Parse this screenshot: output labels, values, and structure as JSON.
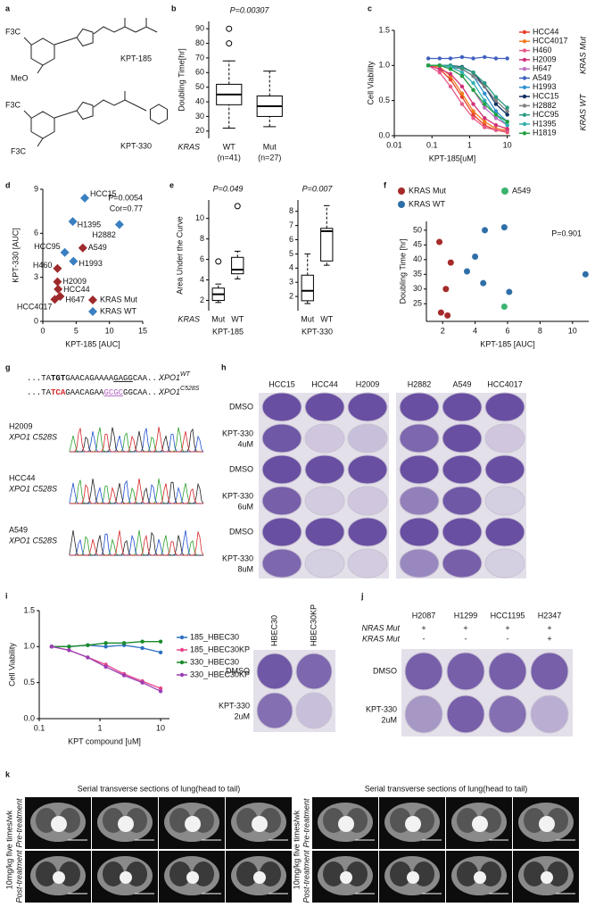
{
  "panel_labels": [
    "a",
    "b",
    "c",
    "d",
    "e",
    "f",
    "g",
    "h",
    "i",
    "j",
    "k"
  ],
  "figure": {
    "a": {
      "compounds": [
        {
          "name": "KPT-185",
          "substituents": [
            "F3C",
            "MeO"
          ]
        },
        {
          "name": "KPT-330",
          "substituents": [
            "F3C",
            "F3C"
          ]
        }
      ]
    },
    "g": {
      "wt": {
        "segments": [
          "...TA",
          "TGT",
          "GAACAGAAAA",
          "GAGG",
          "CAA..."
        ],
        "gene": "XPO1",
        "allele": "WT"
      },
      "mut": {
        "segments": [
          "...TA",
          "TCA",
          "GAACAGAA",
          "GCGC",
          "GGCAA..."
        ],
        "gene": "XPO1",
        "allele": "C528S"
      },
      "traces": [
        {
          "cell_line": "H2009",
          "mutation": "XPO1 C528S",
          "color": "#d62728"
        },
        {
          "cell_line": "HCC44",
          "mutation": "XPO1 C528S",
          "color": "#d62728"
        },
        {
          "cell_line": "A549",
          "mutation": "XPO1 C528S",
          "color": "#2ca02c"
        }
      ]
    },
    "h": {
      "columns": [
        {
          "name": "HCC15",
          "color": "#2f5fbf"
        },
        {
          "name": "HCC44",
          "color": "#d62728"
        },
        {
          "name": "H2009",
          "color": "#d62728"
        },
        {
          "name": "H2882",
          "color": "#2f5fbf"
        },
        {
          "name": "A549",
          "color": "#2ca02c"
        },
        {
          "name": "HCC4017",
          "color": "#d62728"
        }
      ],
      "rows": [
        [
          "DMSO"
        ],
        [
          "KPT-330",
          "4uM"
        ],
        [
          "DMSO"
        ],
        [
          "KPT-330",
          "6uM"
        ],
        [
          "DMSO"
        ],
        [
          "KPT-330",
          "8uM"
        ]
      ]
    },
    "i_plate": {
      "columns": [
        "HBEC30",
        "HBEC30KP"
      ],
      "rows": [
        [
          "DMSO"
        ],
        [
          "KPT-330",
          "2uM"
        ]
      ]
    },
    "j": {
      "columns": [
        "H2087",
        "H1299",
        "HCC1195",
        "H2347"
      ],
      "genotypes": [
        {
          "gene": "NRAS Mut",
          "status": [
            "+",
            "+",
            "+",
            "+"
          ]
        },
        {
          "gene": "KRAS Mut",
          "status": [
            "-",
            "-",
            "-",
            "+"
          ]
        }
      ],
      "rows": [
        [
          "DMSO"
        ],
        [
          "KPT-330",
          "2uM"
        ]
      ]
    },
    "k": {
      "panels": [
        {
          "title": "Serial transverse sections of lung(head to tail)",
          "dose": "10mg/kg five times/wk",
          "rows": [
            "Pre-treatment",
            "Post-treatment"
          ],
          "scale": "10mm"
        },
        {
          "title": "Serial transverse sections of lung(head to tail)",
          "dose": "10mg/kg five times/wk",
          "rows": [
            "Pre-treatment",
            "Post-treatment"
          ],
          "scale": "10mm"
        }
      ]
    }
  },
  "chart_data": [
    {
      "type": "box",
      "title": "P=0.00307",
      "ylabel": "Doubling Time[hr]",
      "group_label": "KRAS",
      "categories": [
        "WT",
        "Mut"
      ],
      "category_notes": [
        "(n=41)",
        "(n=27)"
      ],
      "boxes": [
        {
          "min": 22,
          "q1": 38,
          "median": 45,
          "q3": 52,
          "max": 68,
          "outliers": [
            80,
            90
          ]
        },
        {
          "min": 23,
          "q1": 30,
          "median": 37,
          "q3": 44,
          "max": 61,
          "outliers": []
        }
      ],
      "ylim": [
        15,
        95
      ],
      "yticks": [
        20,
        30,
        40,
        50,
        60,
        70,
        80,
        90
      ]
    },
    {
      "type": "line",
      "xlabel": "KPT-185[uM]",
      "ylabel": "Cell Viability",
      "log_x": true,
      "x": [
        0.08,
        0.16,
        0.31,
        0.63,
        1.25,
        2.5,
        5,
        10
      ],
      "series": [
        {
          "name": "HCC44",
          "color": "#e8402a",
          "values": [
            1.0,
            0.95,
            0.8,
            0.55,
            0.3,
            0.15,
            0.08,
            0.05
          ]
        },
        {
          "name": "HCC4017",
          "color": "#f07c1e",
          "values": [
            1.0,
            0.98,
            0.85,
            0.6,
            0.35,
            0.2,
            0.1,
            0.08
          ]
        },
        {
          "name": "H460",
          "color": "#e65a8a",
          "values": [
            1.0,
            0.9,
            0.7,
            0.45,
            0.25,
            0.12,
            0.08,
            0.06
          ]
        },
        {
          "name": "H2009",
          "color": "#d0307a",
          "values": [
            1.0,
            0.95,
            0.88,
            0.7,
            0.45,
            0.25,
            0.15,
            0.1
          ]
        },
        {
          "name": "H647",
          "color": "#c070c0",
          "values": [
            1.0,
            1.0,
            0.95,
            0.85,
            0.65,
            0.4,
            0.25,
            0.15
          ]
        },
        {
          "name": "A549",
          "color": "#4060c0",
          "values": [
            1.1,
            1.1,
            1.1,
            1.12,
            1.1,
            1.12,
            1.1,
            1.1
          ]
        },
        {
          "name": "H1993",
          "color": "#3090d0",
          "values": [
            1.0,
            1.0,
            0.98,
            0.95,
            0.85,
            0.6,
            0.35,
            0.2
          ]
        },
        {
          "name": "HCC15",
          "color": "#103060",
          "values": [
            1.0,
            1.0,
            1.0,
            0.98,
            0.9,
            0.7,
            0.45,
            0.3
          ]
        },
        {
          "name": "H2882",
          "color": "#808080",
          "values": [
            1.0,
            1.0,
            1.0,
            0.95,
            0.85,
            0.7,
            0.5,
            0.35
          ]
        },
        {
          "name": "HCC95",
          "color": "#2a9a80",
          "values": [
            1.0,
            1.0,
            1.0,
            0.97,
            0.9,
            0.75,
            0.55,
            0.4
          ]
        },
        {
          "name": "H1395",
          "color": "#30b0b0",
          "values": [
            1.0,
            1.0,
            0.98,
            0.9,
            0.75,
            0.5,
            0.3,
            0.15
          ]
        },
        {
          "name": "H1819",
          "color": "#20a040",
          "values": [
            1.0,
            1.0,
            0.95,
            0.85,
            0.65,
            0.45,
            0.3,
            0.2
          ]
        }
      ],
      "xlim": [
        0.01,
        12
      ],
      "xticks": [
        0.01,
        0.1,
        1,
        10
      ],
      "ylim": [
        0,
        1.5
      ],
      "yticks": [
        {
          "value": 0,
          "label": "0.0"
        },
        0.5,
        {
          "value": 1,
          "label": "1.0"
        },
        1.5
      ],
      "group_labels": [
        "KRAS Mut",
        "KRAS WT"
      ]
    },
    {
      "type": "scatter",
      "xlabel": "KPT-185 [AUC]",
      "ylabel": "KPT-330 [AUC]",
      "annotations": [
        "P=0.0054",
        "Cor=0.77"
      ],
      "series": [
        {
          "name": "KRAS Mut",
          "color": "#9e2a2b",
          "marker": "diamond",
          "x": [
            6.0,
            2.2,
            2.2,
            2.3,
            2.6,
            1.8
          ],
          "values": [
            5.0,
            3.6,
            2.7,
            2.2,
            1.7,
            1.5
          ],
          "point_labels": [
            "A549",
            "H460",
            "H2009",
            "HCC44",
            "H647",
            "HCC4017"
          ]
        },
        {
          "name": "KRAS WT",
          "color": "#3a7fc1",
          "marker": "diamond",
          "x": [
            6.3,
            4.5,
            11.5,
            3.3,
            4.6
          ],
          "values": [
            8.4,
            6.8,
            6.6,
            4.7,
            4.1
          ],
          "point_labels": [
            "HCC15",
            "H1395",
            "H2882",
            "HCC95",
            "H1993"
          ]
        }
      ],
      "xlim": [
        0,
        15
      ],
      "xticks": [
        0,
        5,
        10,
        15
      ],
      "ylim": [
        0,
        9
      ],
      "yticks": [
        0,
        3,
        6,
        9
      ]
    },
    {
      "type": "box",
      "title": "P=0.049",
      "ylabel": "Area Under the Curve",
      "xlabel": "KPT-185",
      "group_label": "KRAS",
      "categories": [
        "Mut",
        "WT"
      ],
      "boxes": [
        {
          "min": 1.8,
          "q1": 2.0,
          "median": 2.6,
          "q3": 3.2,
          "max": 3.6,
          "outliers": [
            5.8
          ]
        },
        {
          "min": 4.1,
          "q1": 4.6,
          "median": 5.0,
          "q3": 6.2,
          "max": 6.8,
          "outliers": [
            11.2
          ]
        }
      ],
      "ylim": [
        1,
        11.8
      ],
      "yticks": [
        2,
        4,
        6,
        8,
        10
      ]
    },
    {
      "type": "box",
      "title": "P=0.007",
      "xlabel": "KPT-330",
      "categories": [
        "Mut",
        "WT"
      ],
      "boxes": [
        {
          "min": 1.5,
          "q1": 1.7,
          "median": 2.4,
          "q3": 3.5,
          "max": 5.0,
          "outliers": []
        },
        {
          "min": 4.2,
          "q1": 4.5,
          "median": 6.6,
          "q3": 6.8,
          "max": 8.4,
          "outliers": []
        }
      ],
      "ylim": [
        1,
        8.8
      ],
      "yticks": [
        2,
        3,
        4,
        5,
        6,
        7,
        8
      ]
    },
    {
      "type": "scatter",
      "xlabel": "KPT-185 [AUC]",
      "ylabel": "Doubling Time [hr]",
      "annotations": [
        "P=0.901"
      ],
      "series": [
        {
          "name": "KRAS Mut",
          "color": "#a52a2a",
          "marker": "circle",
          "x": [
            1.8,
            2.2,
            2.5,
            1.9,
            2.3
          ],
          "values": [
            46,
            30,
            39,
            22,
            21
          ]
        },
        {
          "name": "A549",
          "color": "#3cb371",
          "marker": "circle",
          "x": [
            5.8
          ],
          "values": [
            24
          ]
        },
        {
          "name": "KRAS WT",
          "color": "#2f6fa8",
          "marker": "circle",
          "x": [
            3.5,
            4.6,
            5.8,
            4.5,
            6.1,
            10.8,
            4.0
          ],
          "values": [
            36,
            50,
            51,
            32,
            29,
            35,
            41
          ]
        }
      ],
      "xlim": [
        1,
        11
      ],
      "xticks": [
        2,
        4,
        6,
        8,
        10
      ],
      "ylim": [
        19,
        53
      ],
      "yticks": [
        25,
        30,
        35,
        40,
        45,
        50
      ]
    },
    {
      "type": "line",
      "xlabel": "KPT compound [uM]",
      "ylabel": "Cell Viability",
      "log_x": true,
      "x": [
        0.16,
        0.31,
        0.63,
        1.25,
        2.5,
        5,
        10
      ],
      "series": [
        {
          "name": "185_HBEC30",
          "color": "#2f6fc0",
          "values": [
            1.0,
            1.0,
            1.02,
            1.0,
            1.02,
            0.98,
            0.92
          ]
        },
        {
          "name": "185_HBEC30KP",
          "color": "#e8458b",
          "values": [
            1.0,
            0.95,
            0.85,
            0.75,
            0.62,
            0.52,
            0.42
          ]
        },
        {
          "name": "330_HBEC30",
          "color": "#1a8a2a",
          "values": [
            1.0,
            1.0,
            1.02,
            1.05,
            1.05,
            1.07,
            1.07
          ]
        },
        {
          "name": "330_HBEC30KP",
          "color": "#9b3fb5",
          "values": [
            1.0,
            0.95,
            0.85,
            0.72,
            0.6,
            0.5,
            0.38
          ]
        }
      ],
      "xlim": [
        0.1,
        14
      ],
      "xticks": [
        0.1,
        1,
        10
      ],
      "ylim": [
        0,
        1.5
      ],
      "yticks": [
        {
          "value": 0,
          "label": "0.0"
        },
        0.5,
        {
          "value": 1,
          "label": "1.0"
        },
        1.5
      ]
    }
  ]
}
